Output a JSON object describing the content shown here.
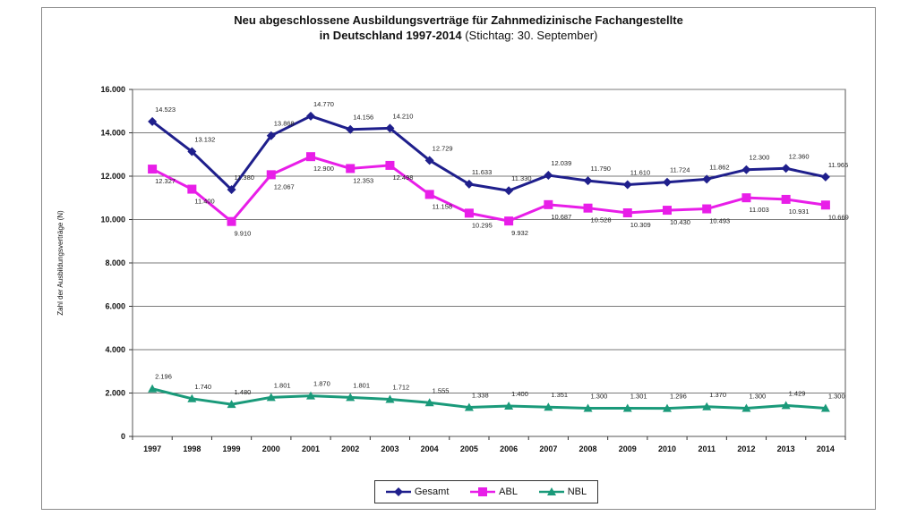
{
  "chart_data": {
    "type": "line",
    "title": "Neu abgeschlossene Ausbildungsverträge für Zahnmedizinische Fachangestellte",
    "subtitle_bold": "in Deutschland 1997-2014",
    "subtitle_normal": " (Stichtag: 30. September)",
    "ylabel": "Zahl der Ausbildungsverträge (N)",
    "xlabel": "",
    "categories": [
      "1997",
      "1998",
      "1999",
      "2000",
      "2001",
      "2002",
      "2003",
      "2004",
      "2005",
      "2006",
      "2007",
      "2008",
      "2009",
      "2010",
      "2011",
      "2012",
      "2013",
      "2014"
    ],
    "ylim": [
      0,
      16000
    ],
    "yticks": [
      0,
      2000,
      4000,
      6000,
      8000,
      10000,
      12000,
      14000,
      16000
    ],
    "ytick_labels": [
      "0",
      "2.000",
      "4.000",
      "6.000",
      "8.000",
      "10.000",
      "12.000",
      "14.000",
      "16.000"
    ],
    "grid": true,
    "legend_position": "bottom",
    "series": [
      {
        "name": "Gesamt",
        "color": "#1f1f8c",
        "marker": "diamond",
        "values": [
          14523,
          13132,
          11380,
          13868,
          14770,
          14156,
          14210,
          12729,
          11633,
          11330,
          12039,
          11790,
          11610,
          11724,
          11862,
          12300,
          12360,
          11965
        ],
        "labels": [
          "14.523",
          "13.132",
          "11.380",
          "13.868",
          "14.770",
          "14.156",
          "14.210",
          "12.729",
          "11.633",
          "11.330",
          "12.039",
          "11.790",
          "11.610",
          "11.724",
          "11.862",
          "12.300",
          "12.360",
          "11.965"
        ]
      },
      {
        "name": "ABL",
        "color": "#e81ee8",
        "marker": "square",
        "values": [
          12327,
          11400,
          9910,
          12067,
          12900,
          12353,
          12498,
          11158,
          10295,
          9932,
          10687,
          10528,
          10309,
          10430,
          10493,
          11003,
          10931,
          10669
        ],
        "labels": [
          "12.327",
          "11.400",
          "9.910",
          "12.067",
          "12.900",
          "12.353",
          "12.498",
          "11.158",
          "10.295",
          "9.932",
          "10.687",
          "10.528",
          "10.309",
          "10.430",
          "10.493",
          "11.003",
          "10.931",
          "10.669"
        ]
      },
      {
        "name": "NBL",
        "color": "#1a9a7a",
        "marker": "triangle",
        "values": [
          2196,
          1740,
          1480,
          1801,
          1870,
          1801,
          1712,
          1555,
          1338,
          1400,
          1351,
          1300,
          1301,
          1296,
          1370,
          1300,
          1429,
          1300
        ],
        "labels": [
          "2.196",
          "1.740",
          "1.480",
          "1.801",
          "1.870",
          "1.801",
          "1.712",
          "1.555",
          "1.338",
          "1.400",
          "1.351",
          "1.300",
          "1.301",
          "1.296",
          "1.370",
          "1.300",
          "1.429",
          "1.300"
        ]
      }
    ]
  }
}
